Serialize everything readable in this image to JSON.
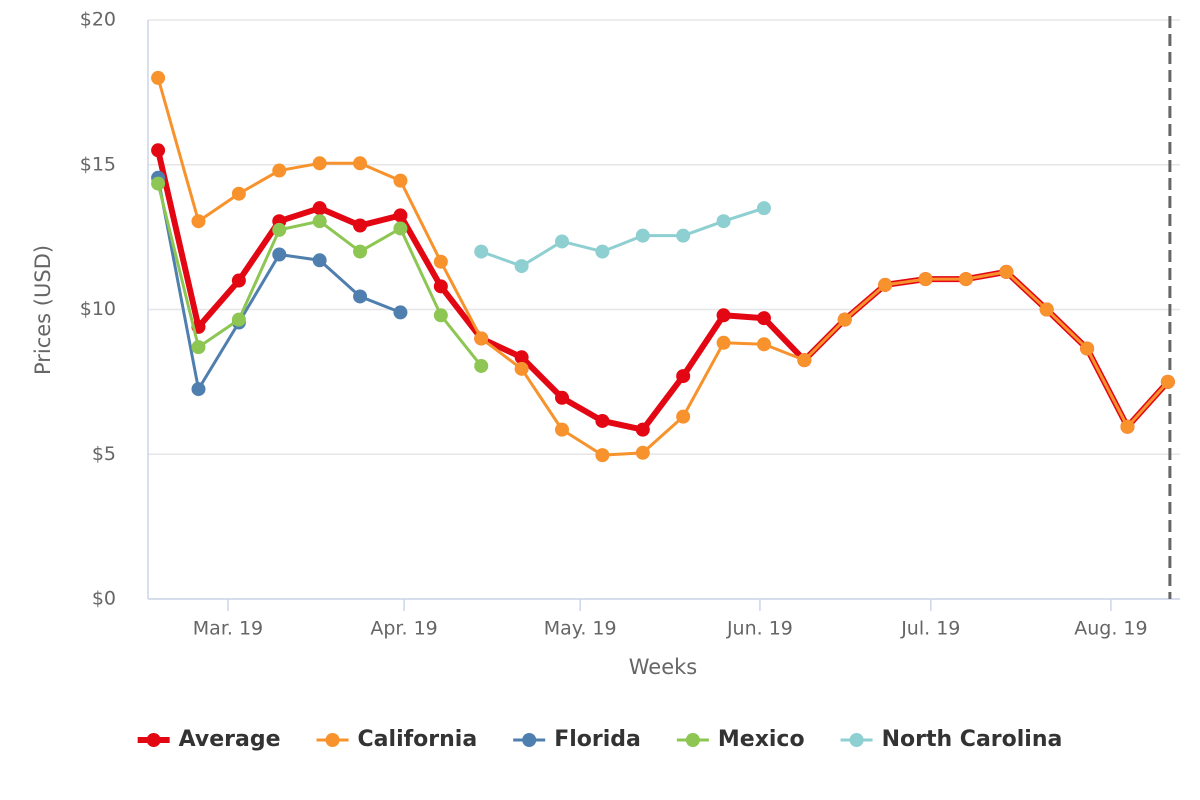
{
  "chart_data": {
    "type": "line",
    "y_axis_title": "Prices (USD)",
    "x_axis_title": "Weeks",
    "x": [
      0,
      1,
      2,
      3,
      4,
      5,
      6,
      7,
      8,
      9,
      10,
      11,
      12,
      13,
      14,
      15,
      16,
      17,
      18,
      19,
      20,
      21,
      22,
      23,
      24,
      25
    ],
    "xlim": [
      -0.25,
      25.3
    ],
    "xticks": [
      {
        "value": 1.73,
        "label": "Mar. 19"
      },
      {
        "value": 6.09,
        "label": "Apr. 19"
      },
      {
        "value": 10.45,
        "label": "May. 19"
      },
      {
        "value": 14.9,
        "label": "Jun. 19"
      },
      {
        "value": 19.13,
        "label": "Jul. 19"
      },
      {
        "value": 23.59,
        "label": "Aug. 19"
      }
    ],
    "x_plot_line": 25.05,
    "ylim": [
      0,
      20
    ],
    "yticks": [
      {
        "value": 0,
        "label": "$0"
      },
      {
        "value": 5,
        "label": "$5"
      },
      {
        "value": 10,
        "label": "$10"
      },
      {
        "value": 15,
        "label": "$15"
      },
      {
        "value": 20,
        "label": "$20"
      }
    ],
    "grid": true,
    "legend": "bottom",
    "series": [
      {
        "name": "Average",
        "color": "#e30613",
        "values": [
          15.5,
          9.4,
          11.0,
          13.05,
          13.5,
          12.9,
          13.25,
          10.8,
          9.0,
          8.35,
          6.95,
          6.15,
          5.85,
          7.7,
          9.8,
          9.7,
          8.25,
          9.65,
          10.85,
          11.05,
          11.05,
          11.3,
          10.0,
          8.65,
          5.95,
          7.5
        ]
      },
      {
        "name": "California",
        "color": "#f7922c",
        "values": [
          18.0,
          13.05,
          14.0,
          14.8,
          15.05,
          15.05,
          14.45,
          11.65,
          9.0,
          7.95,
          5.85,
          4.97,
          5.05,
          6.3,
          8.85,
          8.8,
          8.25,
          9.65,
          10.85,
          11.05,
          11.05,
          11.3,
          10.0,
          8.65,
          5.95,
          7.5
        ]
      },
      {
        "name": "Florida",
        "color": "#4f7fae",
        "values": [
          14.55,
          7.25,
          9.55,
          11.9,
          11.7,
          10.45,
          9.9,
          null,
          null,
          null,
          null,
          null,
          null,
          null,
          null,
          null,
          null,
          null,
          null,
          null,
          null,
          null,
          null,
          null,
          null,
          null
        ]
      },
      {
        "name": "Mexico",
        "color": "#8dc653",
        "values": [
          14.35,
          8.7,
          9.65,
          12.75,
          13.05,
          12.0,
          12.8,
          9.8,
          8.05,
          null,
          null,
          null,
          null,
          null,
          null,
          null,
          null,
          null,
          null,
          null,
          null,
          null,
          null,
          null,
          null,
          null
        ]
      },
      {
        "name": "North Carolina",
        "color": "#8ecfd1",
        "values": [
          null,
          null,
          null,
          null,
          null,
          null,
          null,
          null,
          12.0,
          11.5,
          12.35,
          12.0,
          12.55,
          12.55,
          13.05,
          13.5,
          null,
          null,
          null,
          null,
          null,
          null,
          null,
          null,
          null,
          null
        ]
      }
    ]
  }
}
